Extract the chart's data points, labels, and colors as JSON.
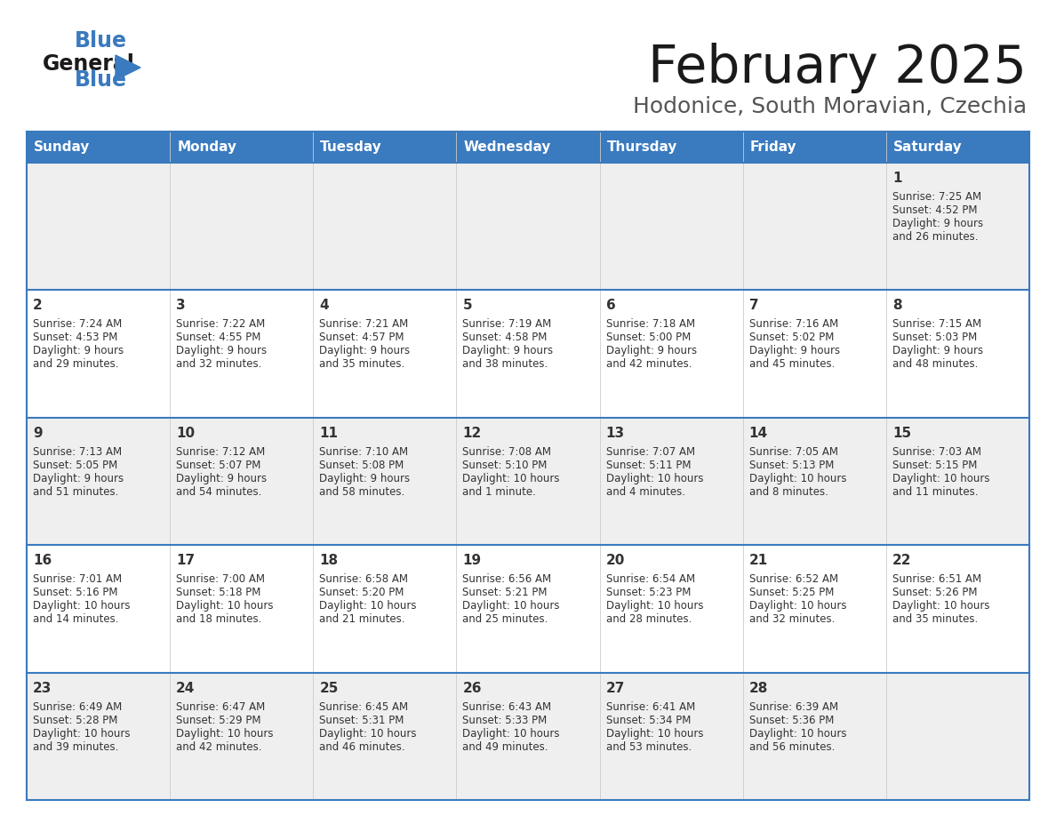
{
  "title": "February 2025",
  "subtitle": "Hodonice, South Moravian, Czechia",
  "header_color": "#3a7abf",
  "header_text_color": "#ffffff",
  "day_names": [
    "Sunday",
    "Monday",
    "Tuesday",
    "Wednesday",
    "Thursday",
    "Friday",
    "Saturday"
  ],
  "background_color": "#ffffff",
  "border_color": "#3a7abf",
  "text_color": "#333333",
  "days": [
    {
      "day": 1,
      "col": 6,
      "row": 0,
      "sunrise": "7:25 AM",
      "sunset": "4:52 PM",
      "daylight": "9 hours",
      "daylight2": "and 26 minutes."
    },
    {
      "day": 2,
      "col": 0,
      "row": 1,
      "sunrise": "7:24 AM",
      "sunset": "4:53 PM",
      "daylight": "9 hours",
      "daylight2": "and 29 minutes."
    },
    {
      "day": 3,
      "col": 1,
      "row": 1,
      "sunrise": "7:22 AM",
      "sunset": "4:55 PM",
      "daylight": "9 hours",
      "daylight2": "and 32 minutes."
    },
    {
      "day": 4,
      "col": 2,
      "row": 1,
      "sunrise": "7:21 AM",
      "sunset": "4:57 PM",
      "daylight": "9 hours",
      "daylight2": "and 35 minutes."
    },
    {
      "day": 5,
      "col": 3,
      "row": 1,
      "sunrise": "7:19 AM",
      "sunset": "4:58 PM",
      "daylight": "9 hours",
      "daylight2": "and 38 minutes."
    },
    {
      "day": 6,
      "col": 4,
      "row": 1,
      "sunrise": "7:18 AM",
      "sunset": "5:00 PM",
      "daylight": "9 hours",
      "daylight2": "and 42 minutes."
    },
    {
      "day": 7,
      "col": 5,
      "row": 1,
      "sunrise": "7:16 AM",
      "sunset": "5:02 PM",
      "daylight": "9 hours",
      "daylight2": "and 45 minutes."
    },
    {
      "day": 8,
      "col": 6,
      "row": 1,
      "sunrise": "7:15 AM",
      "sunset": "5:03 PM",
      "daylight": "9 hours",
      "daylight2": "and 48 minutes."
    },
    {
      "day": 9,
      "col": 0,
      "row": 2,
      "sunrise": "7:13 AM",
      "sunset": "5:05 PM",
      "daylight": "9 hours",
      "daylight2": "and 51 minutes."
    },
    {
      "day": 10,
      "col": 1,
      "row": 2,
      "sunrise": "7:12 AM",
      "sunset": "5:07 PM",
      "daylight": "9 hours",
      "daylight2": "and 54 minutes."
    },
    {
      "day": 11,
      "col": 2,
      "row": 2,
      "sunrise": "7:10 AM",
      "sunset": "5:08 PM",
      "daylight": "9 hours",
      "daylight2": "and 58 minutes."
    },
    {
      "day": 12,
      "col": 3,
      "row": 2,
      "sunrise": "7:08 AM",
      "sunset": "5:10 PM",
      "daylight": "10 hours",
      "daylight2": "and 1 minute."
    },
    {
      "day": 13,
      "col": 4,
      "row": 2,
      "sunrise": "7:07 AM",
      "sunset": "5:11 PM",
      "daylight": "10 hours",
      "daylight2": "and 4 minutes."
    },
    {
      "day": 14,
      "col": 5,
      "row": 2,
      "sunrise": "7:05 AM",
      "sunset": "5:13 PM",
      "daylight": "10 hours",
      "daylight2": "and 8 minutes."
    },
    {
      "day": 15,
      "col": 6,
      "row": 2,
      "sunrise": "7:03 AM",
      "sunset": "5:15 PM",
      "daylight": "10 hours",
      "daylight2": "and 11 minutes."
    },
    {
      "day": 16,
      "col": 0,
      "row": 3,
      "sunrise": "7:01 AM",
      "sunset": "5:16 PM",
      "daylight": "10 hours",
      "daylight2": "and 14 minutes."
    },
    {
      "day": 17,
      "col": 1,
      "row": 3,
      "sunrise": "7:00 AM",
      "sunset": "5:18 PM",
      "daylight": "10 hours",
      "daylight2": "and 18 minutes."
    },
    {
      "day": 18,
      "col": 2,
      "row": 3,
      "sunrise": "6:58 AM",
      "sunset": "5:20 PM",
      "daylight": "10 hours",
      "daylight2": "and 21 minutes."
    },
    {
      "day": 19,
      "col": 3,
      "row": 3,
      "sunrise": "6:56 AM",
      "sunset": "5:21 PM",
      "daylight": "10 hours",
      "daylight2": "and 25 minutes."
    },
    {
      "day": 20,
      "col": 4,
      "row": 3,
      "sunrise": "6:54 AM",
      "sunset": "5:23 PM",
      "daylight": "10 hours",
      "daylight2": "and 28 minutes."
    },
    {
      "day": 21,
      "col": 5,
      "row": 3,
      "sunrise": "6:52 AM",
      "sunset": "5:25 PM",
      "daylight": "10 hours",
      "daylight2": "and 32 minutes."
    },
    {
      "day": 22,
      "col": 6,
      "row": 3,
      "sunrise": "6:51 AM",
      "sunset": "5:26 PM",
      "daylight": "10 hours",
      "daylight2": "and 35 minutes."
    },
    {
      "day": 23,
      "col": 0,
      "row": 4,
      "sunrise": "6:49 AM",
      "sunset": "5:28 PM",
      "daylight": "10 hours",
      "daylight2": "and 39 minutes."
    },
    {
      "day": 24,
      "col": 1,
      "row": 4,
      "sunrise": "6:47 AM",
      "sunset": "5:29 PM",
      "daylight": "10 hours",
      "daylight2": "and 42 minutes."
    },
    {
      "day": 25,
      "col": 2,
      "row": 4,
      "sunrise": "6:45 AM",
      "sunset": "5:31 PM",
      "daylight": "10 hours",
      "daylight2": "and 46 minutes."
    },
    {
      "day": 26,
      "col": 3,
      "row": 4,
      "sunrise": "6:43 AM",
      "sunset": "5:33 PM",
      "daylight": "10 hours",
      "daylight2": "and 49 minutes."
    },
    {
      "day": 27,
      "col": 4,
      "row": 4,
      "sunrise": "6:41 AM",
      "sunset": "5:34 PM",
      "daylight": "10 hours",
      "daylight2": "and 53 minutes."
    },
    {
      "day": 28,
      "col": 5,
      "row": 4,
      "sunrise": "6:39 AM",
      "sunset": "5:36 PM",
      "daylight": "10 hours",
      "daylight2": "and 56 minutes."
    }
  ],
  "num_rows": 5,
  "num_cols": 7
}
